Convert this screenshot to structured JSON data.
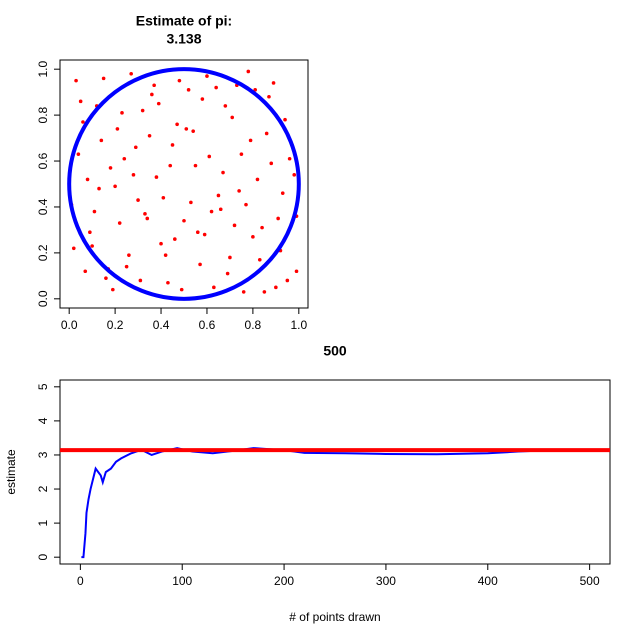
{
  "chart_data": [
    {
      "type": "scatter",
      "title": "Estimate of pi:",
      "subtitle": "3.138",
      "xlim": [
        -0.04,
        1.04
      ],
      "ylim": [
        -0.04,
        1.04
      ],
      "xticks": [
        {
          "value": 0,
          "label": "0.0"
        },
        0.2,
        0.4,
        0.6,
        0.8,
        {
          "value": 1,
          "label": "1.0"
        }
      ],
      "yticks": [
        {
          "value": 0,
          "label": "0.0"
        },
        0.2,
        0.4,
        0.6,
        0.8,
        {
          "value": 1,
          "label": "1.0"
        }
      ],
      "circle": {
        "center": [
          0.5,
          0.5
        ],
        "radius": 0.5,
        "color": "#0000ff"
      },
      "series": [
        {
          "color": "#ff0000",
          "x": [
            0.03,
            0.07,
            0.12,
            0.18,
            0.22,
            0.27,
            0.31,
            0.35,
            0.41,
            0.46,
            0.52,
            0.57,
            0.61,
            0.66,
            0.71,
            0.76,
            0.82,
            0.87,
            0.92,
            0.97,
            0.01,
            0.06,
            0.1,
            0.15,
            0.2,
            0.25,
            0.29,
            0.34,
            0.39,
            0.44,
            0.49,
            0.54,
            0.59,
            0.64,
            0.69,
            0.74,
            0.79,
            0.84,
            0.89,
            0.95,
            0.04,
            0.09,
            0.13,
            0.17,
            0.23,
            0.28,
            0.33,
            0.37,
            0.42,
            0.47,
            0.53,
            0.58,
            0.63,
            0.67,
            0.72,
            0.78,
            0.83,
            0.88,
            0.93,
            0.99,
            0.02,
            0.08,
            0.14,
            0.19,
            0.24,
            0.3,
            0.36,
            0.4,
            0.45,
            0.5,
            0.55,
            0.6,
            0.65,
            0.7,
            0.75,
            0.8,
            0.86,
            0.9,
            0.94,
            0.98,
            0.05,
            0.11,
            0.16,
            0.21,
            0.26,
            0.32,
            0.38,
            0.43,
            0.48,
            0.51,
            0.56,
            0.62,
            0.68,
            0.73,
            0.77,
            0.81,
            0.85,
            0.91,
            0.96,
            0.99
          ],
          "y": [
            0.95,
            0.12,
            0.84,
            0.57,
            0.33,
            0.98,
            0.08,
            0.71,
            0.44,
            0.26,
            0.91,
            0.15,
            0.62,
            0.39,
            0.79,
            0.03,
            0.52,
            0.88,
            0.21,
            0.67,
            0.41,
            0.77,
            0.23,
            0.96,
            0.49,
            0.14,
            0.66,
            0.35,
            0.85,
            0.58,
            0.04,
            0.73,
            0.28,
            0.92,
            0.11,
            0.47,
            0.69,
            0.31,
            0.94,
            0.08,
            0.63,
            0.29,
            0.48,
            0.13,
            0.81,
            0.54,
            0.37,
            0.93,
            0.19,
            0.76,
            0.42,
            0.87,
            0.05,
            0.55,
            0.32,
            0.99,
            0.17,
            0.59,
            0.46,
            0.36,
            0.22,
            0.52,
            0.69,
            0.04,
            0.61,
            0.43,
            0.89,
            0.24,
            0.67,
            0.34,
            0.58,
            0.97,
            0.45,
            0.18,
            0.63,
            0.27,
            0.72,
            0.05,
            0.78,
            0.54,
            0.86,
            0.38,
            0.09,
            0.74,
            0.19,
            0.82,
            0.53,
            0.07,
            0.95,
            0.74,
            0.29,
            0.38,
            0.84,
            0.93,
            0.41,
            0.91,
            0.03,
            0.35,
            0.61,
            0.12
          ]
        }
      ]
    },
    {
      "type": "line",
      "title": "500",
      "xlabel": "# of points drawn",
      "ylabel": "estimate",
      "xlim": [
        -20,
        520
      ],
      "ylim": [
        -0.2,
        5.2
      ],
      "xticks": [
        0,
        100,
        200,
        300,
        400,
        500
      ],
      "yticks": [
        0,
        1,
        2,
        3,
        4,
        5
      ],
      "hline": {
        "value": 3.14159,
        "color": "#ff0000"
      },
      "series": [
        {
          "color": "#0000ff",
          "x": [
            1,
            3,
            5,
            6,
            8,
            10,
            15,
            20,
            22,
            25,
            30,
            35,
            40,
            50,
            60,
            70,
            80,
            95,
            110,
            130,
            150,
            170,
            200,
            220,
            260,
            300,
            350,
            400,
            430,
            460,
            500
          ],
          "values": [
            0,
            0,
            0.7,
            1.3,
            1.7,
            2.0,
            2.6,
            2.4,
            2.2,
            2.5,
            2.6,
            2.8,
            2.9,
            3.05,
            3.15,
            3.0,
            3.1,
            3.2,
            3.1,
            3.05,
            3.12,
            3.2,
            3.14,
            3.06,
            3.05,
            3.03,
            3.02,
            3.05,
            3.1,
            3.14,
            3.138
          ]
        }
      ]
    }
  ]
}
